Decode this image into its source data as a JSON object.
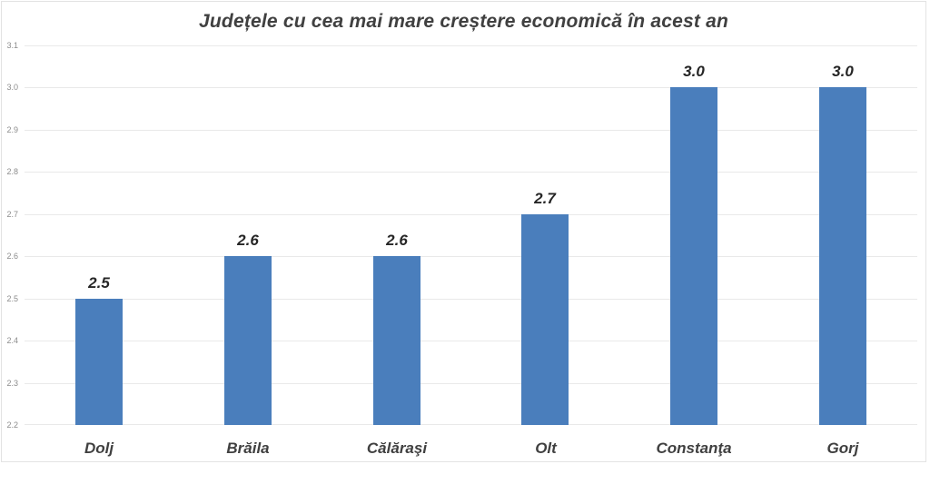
{
  "chart_data": {
    "type": "bar",
    "title": "Județele cu cea mai mare creștere economică în acest an",
    "categories": [
      "Dolj",
      "Brăila",
      "Călăraşi",
      "Olt",
      "Constanţa",
      "Gorj"
    ],
    "values": [
      2.5,
      2.6,
      2.6,
      2.7,
      3.0,
      3.0
    ],
    "data_labels": [
      "2.5",
      "2.6",
      "2.6",
      "2.7",
      "3.0",
      "3.0"
    ],
    "xlabel": "",
    "ylabel": "",
    "y_axis": {
      "min": 2.2,
      "max": 3.1,
      "step": 0.1,
      "tick_labels": [
        "2.2",
        "2.3",
        "2.4",
        "2.5",
        "2.6",
        "2.7",
        "2.8",
        "2.9",
        "3.0",
        "3.1"
      ]
    },
    "grid": true,
    "legend": false,
    "colors": {
      "bar": "#4a7ebc",
      "gridline": "#e9e9e9",
      "title_text": "#404040",
      "tick_text": "#8c8c8c",
      "data_label_text": "#262626",
      "category_text": "#404040",
      "frame_border": "#e3e3e3"
    }
  }
}
